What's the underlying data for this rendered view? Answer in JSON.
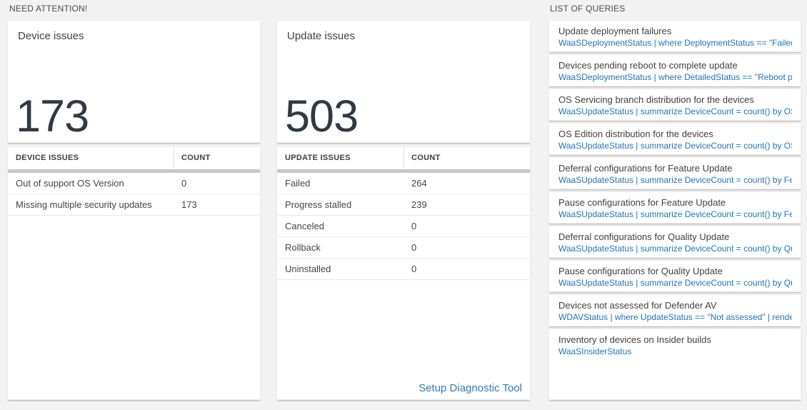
{
  "sections": {
    "need_attention_label": "NEED ATTENTION!",
    "list_of_queries_label": "LIST OF QUERIES"
  },
  "device_card": {
    "title": "Device issues",
    "count": "173"
  },
  "device_table": {
    "headers": [
      "DEVICE ISSUES",
      "COUNT"
    ],
    "rows": [
      {
        "label": "Out of support OS Version",
        "count": "0"
      },
      {
        "label": "Missing multiple security updates",
        "count": "173"
      }
    ]
  },
  "update_card": {
    "title": "Update issues",
    "count": "503"
  },
  "update_table": {
    "headers": [
      "UPDATE ISSUES",
      "COUNT"
    ],
    "rows": [
      {
        "label": "Failed",
        "count": "264"
      },
      {
        "label": "Progress stalled",
        "count": "239"
      },
      {
        "label": "Canceled",
        "count": "0"
      },
      {
        "label": "Rollback",
        "count": "0"
      },
      {
        "label": "Uninstalled",
        "count": "0"
      }
    ],
    "link_label": "Setup Diagnostic Tool"
  },
  "queries": [
    {
      "title": "Update deployment failures",
      "query": "WaaSDeploymentStatus | where DeploymentStatus == \"Failed\" |..."
    },
    {
      "title": "Devices pending reboot to complete update",
      "query": "WaaSDeploymentStatus | where DetailedStatus == \"Reboot pend..."
    },
    {
      "title": "OS Servicing branch distribution for the devices",
      "query": "WaaSUpdateStatus | summarize DeviceCount = count() by OSSer..."
    },
    {
      "title": "OS Edition distribution for the devices",
      "query": "WaaSUpdateStatus | summarize DeviceCount = count() by OSEdit..."
    },
    {
      "title": "Deferral configurations for Feature Update",
      "query": "WaaSUpdateStatus | summarize DeviceCount = count() by Featur..."
    },
    {
      "title": "Pause configurations for Feature Update",
      "query": "WaaSUpdateStatus | summarize DeviceCount = count() by Featur..."
    },
    {
      "title": "Deferral configurations for Quality Update",
      "query": "WaaSUpdateStatus | summarize DeviceCount = count() by Qualit..."
    },
    {
      "title": "Pause configurations for Quality Update",
      "query": "WaaSUpdateStatus | summarize DeviceCount = count() by Qualit..."
    },
    {
      "title": "Devices not assessed for Defender AV",
      "query": "WDAVStatus | where UpdateStatus == \"Not assessed\" | render ta..."
    },
    {
      "title": "Inventory of devices on Insider builds",
      "query": "WaaSInsiderStatus"
    }
  ],
  "colors": {
    "background": "#f2f2f2",
    "card": "#ffffff",
    "big_number": "#303a44",
    "query_blue": "#1d74bb",
    "link_blue": "#2b7cba",
    "header_bar": "#c7c7c7"
  }
}
